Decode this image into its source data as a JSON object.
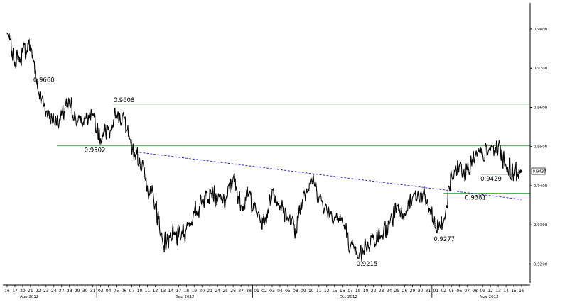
{
  "chart_data": {
    "type": "line",
    "title": "",
    "xlabel": "",
    "ylabel": "",
    "ylim": [
      0.9152,
      0.9856
    ],
    "grid": false,
    "y_ticks": [
      "0.9800",
      "0.9700",
      "0.9600",
      "0.9500",
      "0.9400",
      "0.9300",
      "0.9200"
    ],
    "x_ticks": [
      "16",
      "17",
      "20",
      "21",
      "22",
      "23",
      "24",
      "27",
      "28",
      "29",
      "30",
      "31",
      "03",
      "04",
      "05",
      "06",
      "07",
      "10",
      "11",
      "12",
      "13",
      "14",
      "17",
      "18",
      "19",
      "20",
      "21",
      "24",
      "25",
      "26",
      "27",
      "28",
      "01",
      "02",
      "03",
      "04",
      "05",
      "08",
      "09",
      "10",
      "11",
      "12",
      "15",
      "16",
      "17",
      "18",
      "19",
      "22",
      "23",
      "24",
      "25",
      "26",
      "29",
      "30",
      "31",
      "01",
      "02",
      "05",
      "06",
      "07",
      "08",
      "09",
      "12",
      "13",
      "14",
      "15",
      "16"
    ],
    "months": [
      {
        "label": "Aug 2012",
        "tick_index": 2
      },
      {
        "label": "Sep 2012",
        "tick_index": 22
      },
      {
        "label": "Oct 2012",
        "tick_index": 43
      },
      {
        "label": "Nov 2012",
        "tick_index": 61
      }
    ],
    "month_separators": [
      11,
      31,
      54
    ],
    "series": [
      {
        "values": [
          0.979,
          0.9715,
          0.974,
          0.976,
          0.964,
          0.959,
          0.956,
          0.958,
          0.961,
          0.956,
          0.957,
          0.958,
          0.952,
          0.955,
          0.958,
          0.957,
          0.948,
          0.947,
          0.94,
          0.935,
          0.925,
          0.927,
          0.927,
          0.929,
          0.933,
          0.936,
          0.939,
          0.936,
          0.936,
          0.942,
          0.935,
          0.938,
          0.933,
          0.93,
          0.939,
          0.935,
          0.932,
          0.929,
          0.938,
          0.942,
          0.937,
          0.934,
          0.932,
          0.931,
          0.924,
          0.9215,
          0.925,
          0.927,
          0.927,
          0.93,
          0.935,
          0.933,
          0.937,
          0.938,
          0.935,
          0.929,
          0.931,
          0.943,
          0.945,
          0.944,
          0.947,
          0.948,
          0.949,
          0.95,
          0.945,
          0.943,
          0.9437
        ],
        "color": "#000000"
      }
    ],
    "last_price_label": "0.9437",
    "horizontal_levels": [
      {
        "value": 0.9608,
        "color": "#9fd39f"
      },
      {
        "value": 0.9502,
        "color": "#4db84d"
      },
      {
        "value": 0.9381,
        "color": "#4db84d"
      },
      {
        "value": 0.9429,
        "color": "#8fa88f"
      }
    ],
    "trendline": {
      "x_start": 17,
      "y_start": 0.9485,
      "x_end": 66,
      "y_end": 0.9365,
      "color": "#3333cc",
      "style": "dashed"
    },
    "annotations": [
      {
        "text": "0.9660",
        "x": 3,
        "y": 0.966
      },
      {
        "text": "0.9608",
        "x": 14,
        "y": 0.9608
      },
      {
        "text": "0.9502",
        "x": 11,
        "y": 0.9502
      },
      {
        "text": "0.9215",
        "x": 45,
        "y": 0.9215
      },
      {
        "text": "0.9277",
        "x": 55,
        "y": 0.9277
      },
      {
        "text": "0.9381",
        "x": 59,
        "y": 0.9381
      },
      {
        "text": "0.9429",
        "x": 61,
        "y": 0.9429
      }
    ]
  }
}
